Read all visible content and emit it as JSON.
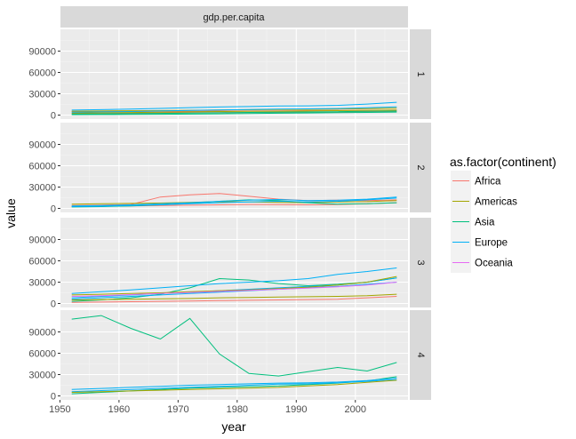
{
  "chart_data": {
    "type": "line",
    "facet_column_label": "gdp.per.capita",
    "facet_rows": [
      "1",
      "2",
      "3",
      "4"
    ],
    "xlabel": "year",
    "ylabel": "value",
    "xlim": [
      1952,
      2007
    ],
    "x_ticks": [
      1950,
      1960,
      1970,
      1980,
      1990,
      2000
    ],
    "ylim": [
      0,
      115000
    ],
    "y_ticks": [
      0,
      30000,
      60000,
      90000
    ],
    "grid": true,
    "legend": {
      "title": "as.factor(continent)",
      "placement": "right",
      "entries": [
        {
          "name": "Africa",
          "color": "#F8766D"
        },
        {
          "name": "Americas",
          "color": "#A3A500"
        },
        {
          "name": "Asia",
          "color": "#00BF7D"
        },
        {
          "name": "Europe",
          "color": "#00B0F6"
        },
        {
          "name": "Oceania",
          "color": "#E76BF3"
        }
      ]
    },
    "x": [
      1952,
      1957,
      1962,
      1967,
      1972,
      1977,
      1982,
      1987,
      1992,
      1997,
      2002,
      2007
    ],
    "panels": [
      {
        "facet": "1",
        "series": [
          {
            "continent": "Africa",
            "values": [
              5000,
              5000,
              5000,
              5200,
              5400,
              5600,
              5800,
              6000,
              6200,
              6500,
              6800,
              7000
            ]
          },
          {
            "continent": "Africa",
            "values": [
              2000,
              2300,
              2600,
              3000,
              3400,
              3500,
              3600,
              3700,
              3900,
              4200,
              4600,
              5100
            ]
          },
          {
            "continent": "Americas",
            "values": [
              3000,
              3300,
              3600,
              4000,
              4500,
              5000,
              5200,
              5400,
              5800,
              6200,
              6500,
              7000
            ]
          },
          {
            "continent": "Americas",
            "values": [
              5500,
              5800,
              6100,
              6400,
              6800,
              7200,
              7500,
              7700,
              8000,
              8500,
              9000,
              9800
            ]
          },
          {
            "continent": "Asia",
            "values": [
              1500,
              1700,
              2000,
              2400,
              2800,
              3300,
              3700,
              4000,
              4400,
              4800,
              5200,
              5600
            ]
          },
          {
            "continent": "Asia",
            "values": [
              600,
              700,
              900,
              1100,
              1400,
              1800,
              2200,
              2600,
              3000,
              3400,
              3800,
              4200
            ]
          },
          {
            "continent": "Europe",
            "values": [
              7000,
              7600,
              8400,
              9400,
              10500,
              11400,
              12000,
              12700,
              13000,
              13800,
              15500,
              18000
            ]
          },
          {
            "continent": "Europe",
            "values": [
              4000,
              4500,
              5000,
              5700,
              6500,
              7300,
              7900,
              8500,
              8700,
              9200,
              10200,
              11500
            ]
          }
        ]
      },
      {
        "facet": "2",
        "series": [
          {
            "continent": "Africa",
            "values": [
              4000,
              4500,
              5500,
              16000,
              19000,
              21000,
              17000,
              13000,
              11000,
              11500,
              11000,
              12000
            ]
          },
          {
            "continent": "Africa",
            "values": [
              2500,
              3000,
              3500,
              4000,
              4500,
              5000,
              5500,
              5200,
              5000,
              5500,
              6500,
              8000
            ]
          },
          {
            "continent": "Americas",
            "values": [
              6000,
              6500,
              7000,
              7500,
              8500,
              9500,
              9000,
              8500,
              8000,
              9000,
              9500,
              11000
            ]
          },
          {
            "continent": "Asia",
            "values": [
              2000,
              2500,
              3500,
              5000,
              7000,
              10000,
              12000,
              11000,
              8000,
              6000,
              6500,
              8000
            ]
          },
          {
            "continent": "Europe",
            "values": [
              3500,
              4000,
              5000,
              6500,
              8000,
              10000,
              11500,
              12500,
              11000,
              11500,
              13000,
              16000
            ]
          },
          {
            "continent": "Europe",
            "values": [
              2500,
              3000,
              4000,
              5000,
              6500,
              8000,
              9000,
              10000,
              9000,
              10000,
              12000,
              14500
            ]
          }
        ]
      },
      {
        "facet": "3",
        "series": [
          {
            "continent": "Asia",
            "values": [
              3000,
              5000,
              8000,
              13000,
              22000,
              35000,
              33000,
              28000,
              25000,
              27000,
              30000,
              36000
            ]
          },
          {
            "continent": "Europe",
            "values": [
              14000,
              16500,
              19000,
              22000,
              25000,
              28000,
              30000,
              32000,
              35000,
              41000,
              45000,
              50000
            ]
          },
          {
            "continent": "Europe",
            "values": [
              8000,
              10000,
              12000,
              14000,
              16000,
              18000,
              20000,
              22000,
              24000,
              26000,
              30000,
              36000
            ]
          },
          {
            "continent": "Europe",
            "values": [
              6000,
              8000,
              10000,
              12000,
              14000,
              16000,
              18000,
              20000,
              22000,
              24000,
              27000,
              30000
            ]
          },
          {
            "continent": "Americas",
            "values": [
              12000,
              13000,
              14000,
              15000,
              16500,
              18000,
              19000,
              21000,
              23000,
              26000,
              30000,
              38000
            ]
          },
          {
            "continent": "Americas",
            "values": [
              5000,
              5500,
              6000,
              6500,
              7000,
              8000,
              8500,
              9000,
              9500,
              10000,
              11000,
              13000
            ]
          },
          {
            "continent": "Africa",
            "values": [
              1500,
              2000,
              2500,
              3000,
              3500,
              4000,
              4500,
              5000,
              5500,
              6000,
              8000,
              10000
            ]
          },
          {
            "continent": "Oceania",
            "values": [
              10000,
              11000,
              12500,
              14000,
              15500,
              17000,
              18500,
              20000,
              21500,
              23500,
              26000,
              30000
            ]
          }
        ]
      },
      {
        "facet": "4",
        "series": [
          {
            "continent": "Asia",
            "values": [
              108000,
              113000,
              95000,
              80000,
              109000,
              59000,
              31500,
              28000,
              34000,
              40000,
              35000,
              47000
            ]
          },
          {
            "continent": "Asia",
            "values": [
              3000,
              5000,
              7000,
              9000,
              11000,
              12000,
              13000,
              14000,
              16000,
              18000,
              21000,
              27000
            ]
          },
          {
            "continent": "Europe",
            "values": [
              9000,
              10500,
              12000,
              13500,
              15000,
              16000,
              17000,
              18000,
              18500,
              19500,
              21500,
              25000
            ]
          },
          {
            "continent": "Europe",
            "values": [
              6000,
              7500,
              9000,
              10500,
              12000,
              13500,
              15000,
              16500,
              17000,
              18500,
              20500,
              23000
            ]
          },
          {
            "continent": "Americas",
            "values": [
              5000,
              6000,
              7000,
              8000,
              9000,
              10000,
              11000,
              12000,
              14000,
              16000,
              19000,
              22000
            ]
          }
        ]
      }
    ]
  }
}
